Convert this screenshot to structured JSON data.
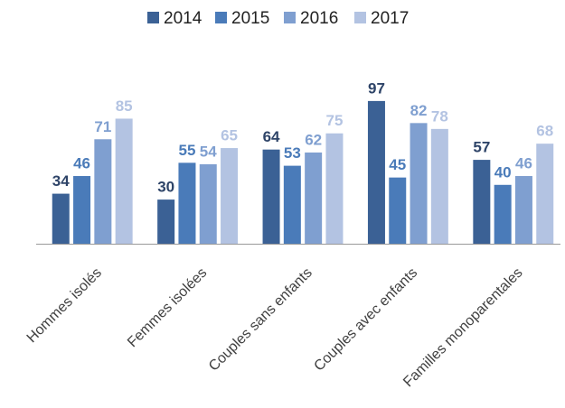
{
  "chart_data": {
    "type": "bar",
    "categories": [
      "Hommes isolés",
      "Femmes isolées",
      "Couples sans enfants",
      "Couples avec enfants",
      "Familles monoparentales"
    ],
    "series": [
      {
        "name": "2014",
        "color": "#3b6195",
        "values": [
          34,
          30,
          64,
          97,
          57
        ]
      },
      {
        "name": "2015",
        "color": "#4a7bb9",
        "values": [
          46,
          55,
          53,
          45,
          40
        ]
      },
      {
        "name": "2016",
        "color": "#7f9fd0",
        "values": [
          71,
          54,
          62,
          82,
          46
        ]
      },
      {
        "name": "2017",
        "color": "#b3c3e2",
        "values": [
          85,
          65,
          75,
          78,
          68
        ]
      }
    ],
    "ylim": [
      0,
      100
    ],
    "legend": "top"
  }
}
